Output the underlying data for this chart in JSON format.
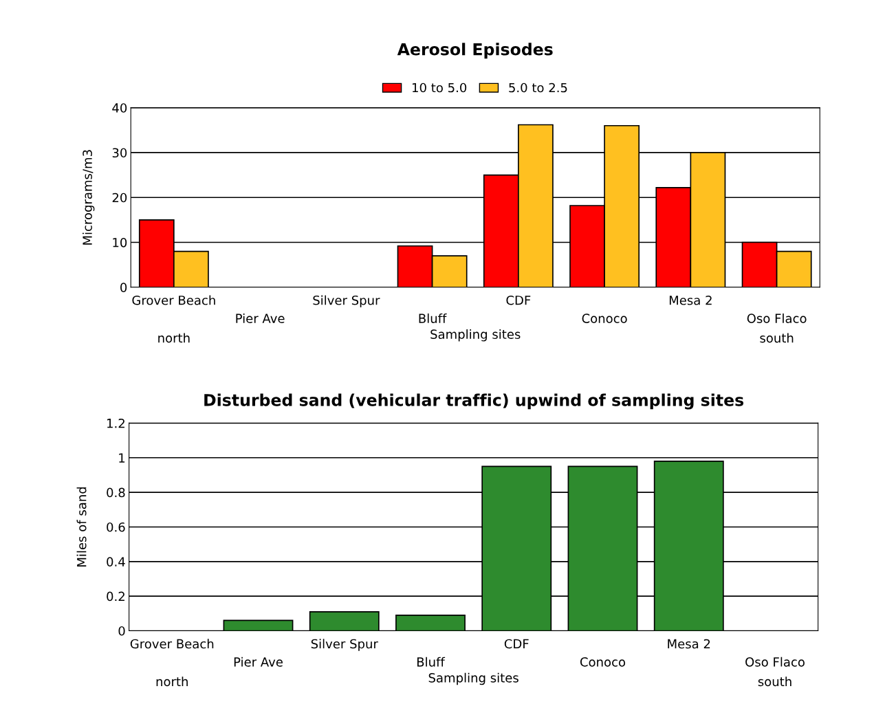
{
  "chart_data": [
    {
      "type": "bar",
      "title": "Aerosol Episodes",
      "xlabel": "Sampling sites",
      "ylabel": "Micrograms/m3",
      "categories": [
        "Grover Beach",
        "Pier Ave",
        "Silver Spur",
        "Bluff",
        "CDF",
        "Conoco",
        "Mesa 2",
        "Oso Flaco"
      ],
      "series": [
        {
          "name": "10 to 5.0",
          "color": "#ff0000",
          "values": [
            15,
            null,
            null,
            9.2,
            25,
            18.2,
            22.2,
            10
          ]
        },
        {
          "name": "5.0 to 2.5",
          "color": "#ffc020",
          "values": [
            8,
            null,
            null,
            7,
            36.2,
            36,
            30,
            8
          ]
        }
      ],
      "ylim": [
        0,
        40
      ],
      "yticks": [
        0,
        10,
        20,
        30,
        40
      ],
      "grid": "y",
      "legend": "top",
      "annotations": [
        "north",
        "south"
      ]
    },
    {
      "type": "bar",
      "title": "Disturbed sand (vehicular traffic) upwind of sampling sites",
      "xlabel": "Sampling sites",
      "ylabel": "Miles of sand",
      "categories": [
        "Grover Beach",
        "Pier Ave",
        "Silver Spur",
        "Bluff",
        "CDF",
        "Conoco",
        "Mesa 2",
        "Oso Flaco"
      ],
      "series": [
        {
          "color": "#2e8b2e",
          "values": [
            null,
            0.06,
            0.11,
            0.09,
            0.95,
            0.95,
            0.98,
            null
          ]
        }
      ],
      "ylim": [
        0,
        1.2
      ],
      "yticks": [
        0,
        0.2,
        0.4,
        0.6,
        0.8,
        1,
        1.2
      ],
      "grid": "y",
      "legend": false,
      "annotations": [
        "north",
        "south"
      ]
    }
  ]
}
